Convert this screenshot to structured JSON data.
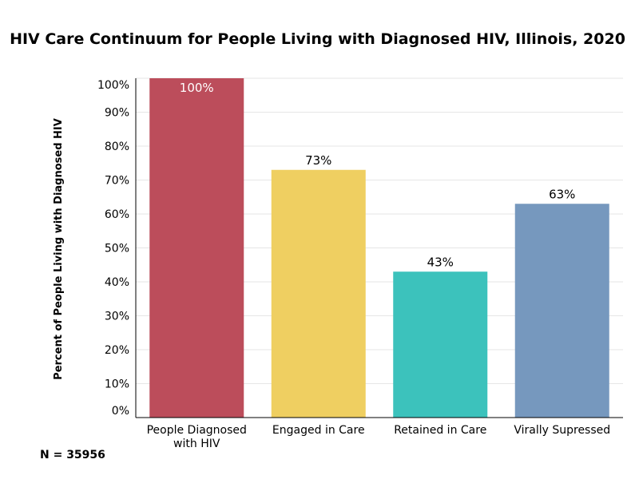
{
  "chart_data": {
    "type": "bar",
    "title": "HIV Care Continuum for People Living with Diagnosed HIV, Illinois, 2020",
    "xlabel": "",
    "ylabel": "Percent of People Living with Diagnosed HIV",
    "ylim": [
      0,
      100
    ],
    "yticks": [
      "0%",
      "10%",
      "20%",
      "30%",
      "40%",
      "50%",
      "60%",
      "70%",
      "80%",
      "90%",
      "100%"
    ],
    "categories": [
      [
        "People Diagnosed",
        "with HIV"
      ],
      [
        "Engaged in Care"
      ],
      [
        "Retained in Care"
      ],
      [
        "Virally Supressed"
      ]
    ],
    "values": [
      100,
      73,
      43,
      63
    ],
    "value_labels": [
      "100%",
      "73%",
      "43%",
      "63%"
    ],
    "colors": [
      "#BC4D5B",
      "#EFCF61",
      "#3CC2BC",
      "#7698BE"
    ],
    "data_label_colors": [
      "#ffffff",
      "#000000",
      "#000000",
      "#000000"
    ],
    "grid": true,
    "legend": "none"
  },
  "footnote": "N = 35956"
}
